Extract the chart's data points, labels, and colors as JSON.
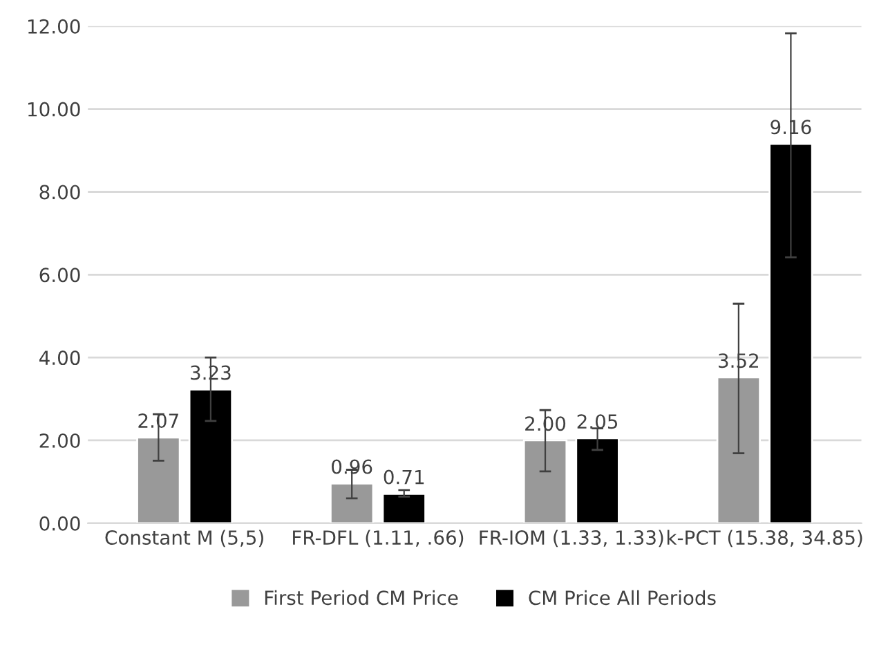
{
  "chart_data": {
    "type": "bar",
    "categories": [
      "Constant M (5,5)",
      "FR-DFL (1.11, .66)",
      "FR-IOM (1.33, 1.33)",
      "k-PCT (15.38, 34.85)"
    ],
    "series": [
      {
        "name": "First Period CM Price",
        "color": "#999999",
        "values": [
          2.07,
          0.96,
          2.0,
          3.52
        ],
        "errors": [
          [
            1.51,
            2.63
          ],
          [
            0.6,
            1.29
          ],
          [
            1.25,
            2.73
          ],
          [
            1.69,
            5.3
          ]
        ],
        "value_labels": [
          "2.07",
          "0.96",
          "2.00",
          "3.52"
        ]
      },
      {
        "name": "CM Price All Periods",
        "color": "#000000",
        "values": [
          3.23,
          0.71,
          2.05,
          9.16
        ],
        "errors": [
          [
            2.47,
            4.0
          ],
          [
            0.64,
            0.8
          ],
          [
            1.77,
            2.29
          ],
          [
            6.42,
            11.83
          ]
        ],
        "value_labels": [
          "3.23",
          "0.71",
          "2.05",
          "9.16"
        ]
      }
    ],
    "ylim": [
      0,
      12
    ],
    "yticks": [
      {
        "value": 0,
        "label": "0.00"
      },
      {
        "value": 2,
        "label": "2.00"
      },
      {
        "value": 4,
        "label": "4.00"
      },
      {
        "value": 6,
        "label": "6.00"
      },
      {
        "value": 8,
        "label": "8.00"
      },
      {
        "value": 10,
        "label": "10.00"
      },
      {
        "value": 12,
        "label": "12.00"
      }
    ],
    "grid": "y",
    "legend": "bottom"
  }
}
